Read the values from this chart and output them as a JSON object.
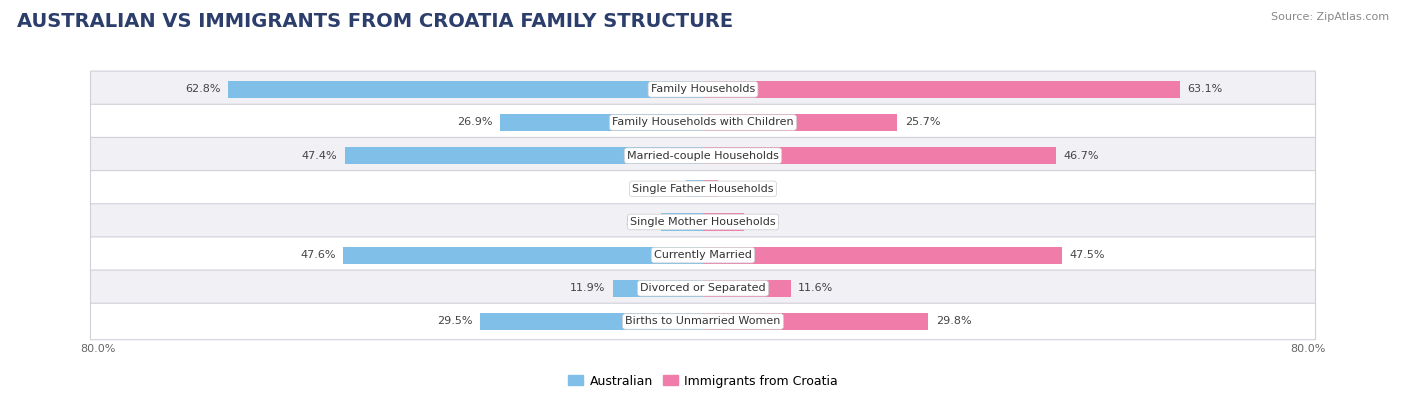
{
  "title": "AUSTRALIAN VS IMMIGRANTS FROM CROATIA FAMILY STRUCTURE",
  "source": "Source: ZipAtlas.com",
  "categories": [
    "Family Households",
    "Family Households with Children",
    "Married-couple Households",
    "Single Father Households",
    "Single Mother Households",
    "Currently Married",
    "Divorced or Separated",
    "Births to Unmarried Women"
  ],
  "australian_values": [
    62.8,
    26.9,
    47.4,
    2.2,
    5.6,
    47.6,
    11.9,
    29.5
  ],
  "croatia_values": [
    63.1,
    25.7,
    46.7,
    2.0,
    5.4,
    47.5,
    11.6,
    29.8
  ],
  "australian_color": "#7fbfe8",
  "croatia_color": "#f07caa",
  "australian_label": "Australian",
  "croatia_label": "Immigrants from Croatia",
  "xlim": 80.0,
  "background_color": "#ffffff",
  "row_odd_color": "#f0f0f5",
  "row_even_color": "#ffffff",
  "bar_height": 0.52,
  "title_fontsize": 14,
  "label_fontsize": 8,
  "value_fontsize": 8,
  "legend_fontsize": 9
}
